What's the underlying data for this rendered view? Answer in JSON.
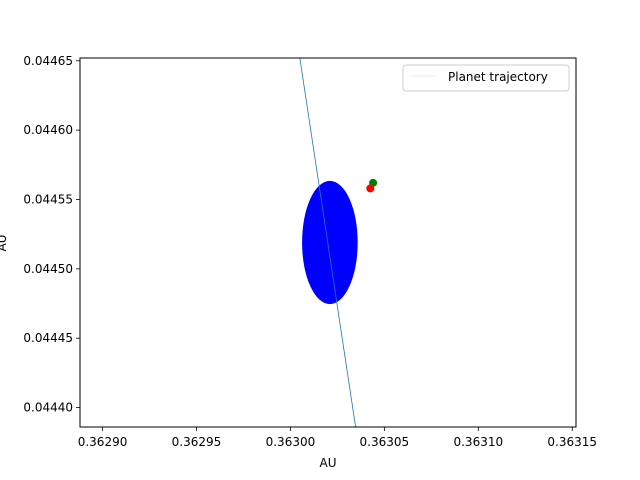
{
  "chart_data": {
    "type": "scatter",
    "title": "",
    "xlabel": "AU",
    "ylabel": "AU",
    "xlim": [
      0.362888,
      0.363152
    ],
    "ylim": [
      0.044386,
      0.044652
    ],
    "xticks": [
      "0.36290",
      "0.36295",
      "0.36300",
      "0.36305",
      "0.36310",
      "0.36315"
    ],
    "yticks": [
      "0.04440",
      "0.04445",
      "0.04450",
      "0.04455",
      "0.04460",
      "0.04465"
    ],
    "grid": false,
    "legend_position": "top-right",
    "series": [
      {
        "name": "Planet trajectory",
        "kind": "line",
        "color": "#1f77b4",
        "x": [
          0.363005,
          0.3630347
        ],
        "y": [
          0.044652,
          0.044386
        ]
      }
    ],
    "ellipse": {
      "color": "#0000ff",
      "center": [
        0.363021,
        0.044519
      ],
      "radius_x": 1.48e-05,
      "radius_y": 4.44e-05
    },
    "points": [
      {
        "color": "#008000",
        "x": 0.363044,
        "y": 0.044562
      },
      {
        "color": "#ff0000",
        "x": 0.3630425,
        "y": 0.044558
      }
    ]
  }
}
